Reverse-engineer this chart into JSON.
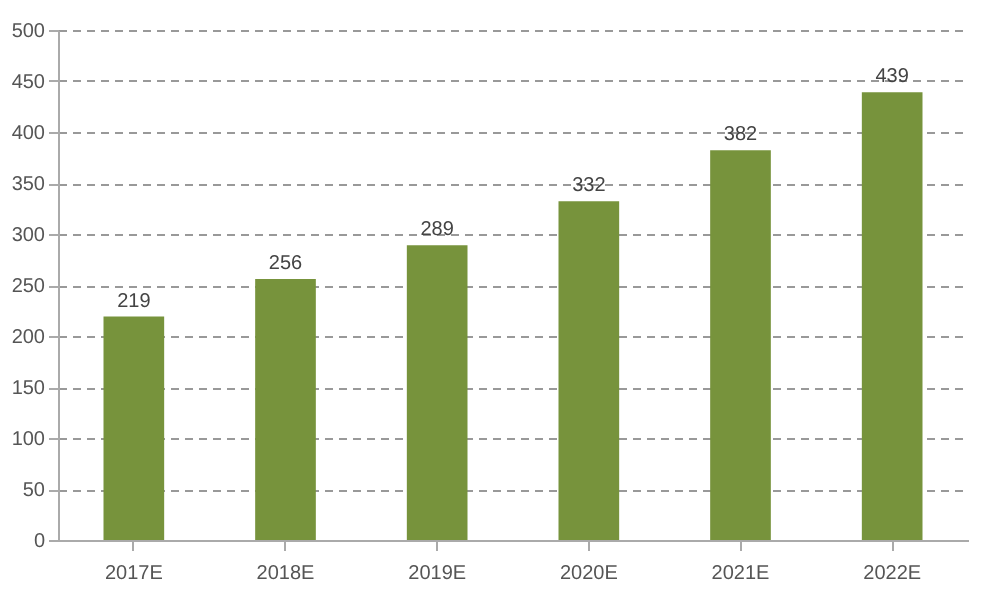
{
  "chart_data": {
    "type": "bar",
    "categories": [
      "2017E",
      "2018E",
      "2019E",
      "2020E",
      "2021E",
      "2022E"
    ],
    "values": [
      219,
      256,
      289,
      332,
      382,
      439
    ],
    "color": "#77933c",
    "ylim": [
      0,
      500
    ],
    "yticks": [
      0,
      50,
      100,
      150,
      200,
      250,
      300,
      350,
      400,
      450,
      500
    ],
    "grid": "y",
    "data_labels": true
  }
}
